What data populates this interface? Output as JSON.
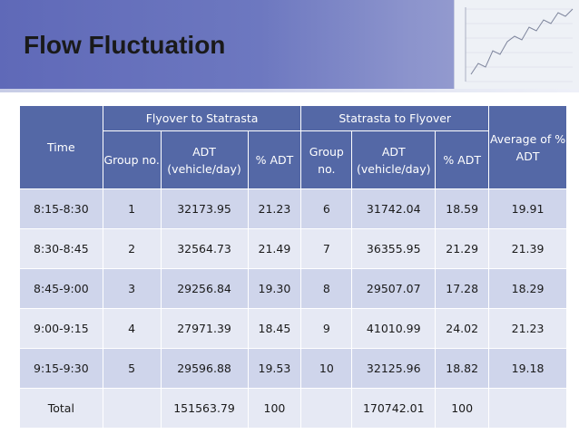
{
  "slide": {
    "title": "Flow Fluctuation"
  },
  "table": {
    "time_header": "Time",
    "group1_header": "Flyover to Statrasta",
    "group2_header": "Statrasta to Flyover",
    "avg_header": "Average of % ADT",
    "sub_headers": [
      "Group no.",
      "ADT (vehicle/day)",
      "% ADT",
      "Group no.",
      "ADT (vehicle/day)",
      "% ADT"
    ],
    "rows": [
      [
        "8:15-8:30",
        "1",
        "32173.95",
        "21.23",
        "6",
        "31742.04",
        "18.59",
        "19.91"
      ],
      [
        "8:30-8:45",
        "2",
        "32564.73",
        "21.49",
        "7",
        "36355.95",
        "21.29",
        "21.39"
      ],
      [
        "8:45-9:00",
        "3",
        "29256.84",
        "19.30",
        "8",
        "29507.07",
        "17.28",
        "18.29"
      ],
      [
        "9:00-9:15",
        "4",
        "27971.39",
        "18.45",
        "9",
        "41010.99",
        "24.02",
        "21.23"
      ],
      [
        "9:15-9:30",
        "5",
        "29596.88",
        "19.53",
        "10",
        "32125.96",
        "18.82",
        "19.18"
      ],
      [
        "Total",
        "",
        "151563.79",
        "100",
        "",
        "170742.01",
        "100",
        ""
      ]
    ]
  },
  "colors": {
    "header_blue": "#5468a6",
    "row_dark": "#cfd5eb",
    "row_light": "#e6e9f4"
  }
}
